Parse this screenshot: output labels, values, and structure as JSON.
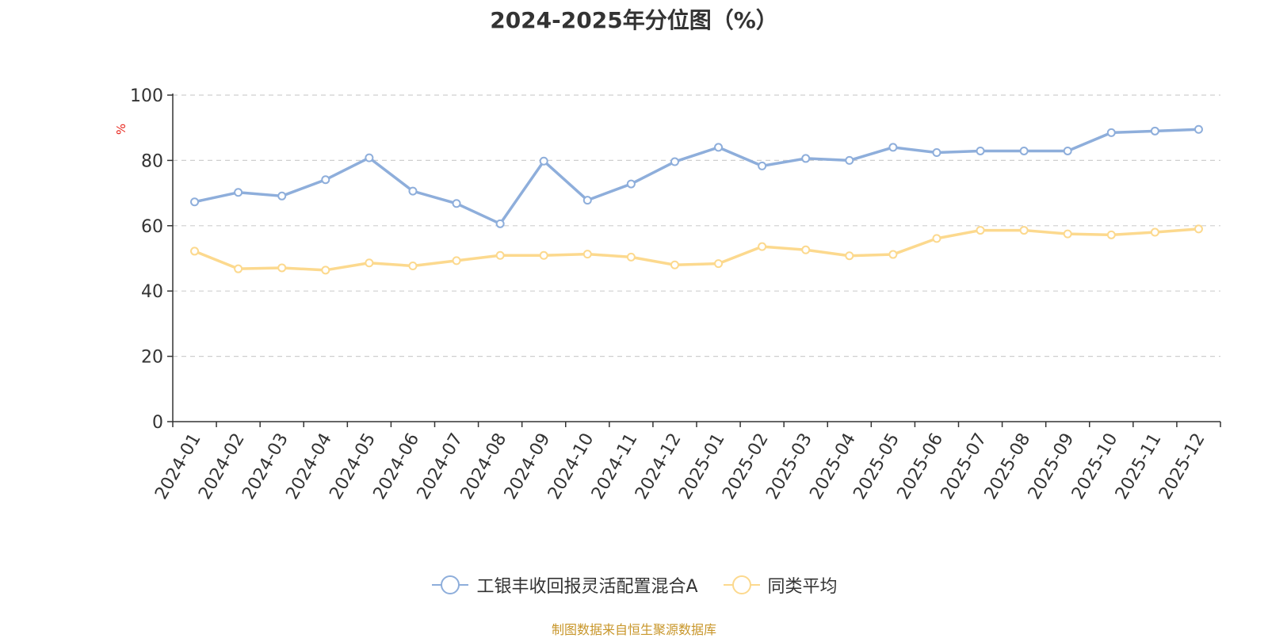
{
  "chart_data": {
    "type": "line",
    "title": "2024-2025年分位图（%）",
    "ylabel": "%",
    "xlabel": "",
    "ylim": [
      0,
      100
    ],
    "yticks": [
      0,
      20,
      40,
      60,
      80,
      100
    ],
    "grid": true,
    "legend_position": "bottom",
    "categories": [
      "2024-01",
      "2024-02",
      "2024-03",
      "2024-04",
      "2024-05",
      "2024-06",
      "2024-07",
      "2024-08",
      "2024-09",
      "2024-10",
      "2024-11",
      "2024-12",
      "2025-01",
      "2025-02",
      "2025-03",
      "2025-04",
      "2025-05",
      "2025-06",
      "2025-07",
      "2025-08",
      "2025-09",
      "2025-10",
      "2025-11",
      "2025-12"
    ],
    "series": [
      {
        "name": "工银丰收回报灵活配置混合A",
        "color": "#8eaedb",
        "values": [
          67.3,
          70.2,
          69.1,
          74.1,
          80.8,
          70.6,
          66.8,
          60.6,
          79.8,
          67.8,
          72.8,
          79.6,
          84.0,
          78.3,
          80.6,
          80.0,
          84.0,
          82.4,
          82.9,
          82.9,
          82.9,
          88.5,
          89.0,
          89.5
        ]
      },
      {
        "name": "同类平均",
        "color": "#fcd98e",
        "values": [
          52.2,
          46.8,
          47.1,
          46.4,
          48.6,
          47.7,
          49.3,
          50.9,
          50.9,
          51.3,
          50.4,
          48.0,
          48.4,
          53.6,
          52.6,
          50.8,
          51.2,
          56.1,
          58.6,
          58.6,
          57.5,
          57.2,
          58.0,
          59.0
        ]
      }
    ]
  },
  "source_note": "制图数据来自恒生聚源数据库"
}
